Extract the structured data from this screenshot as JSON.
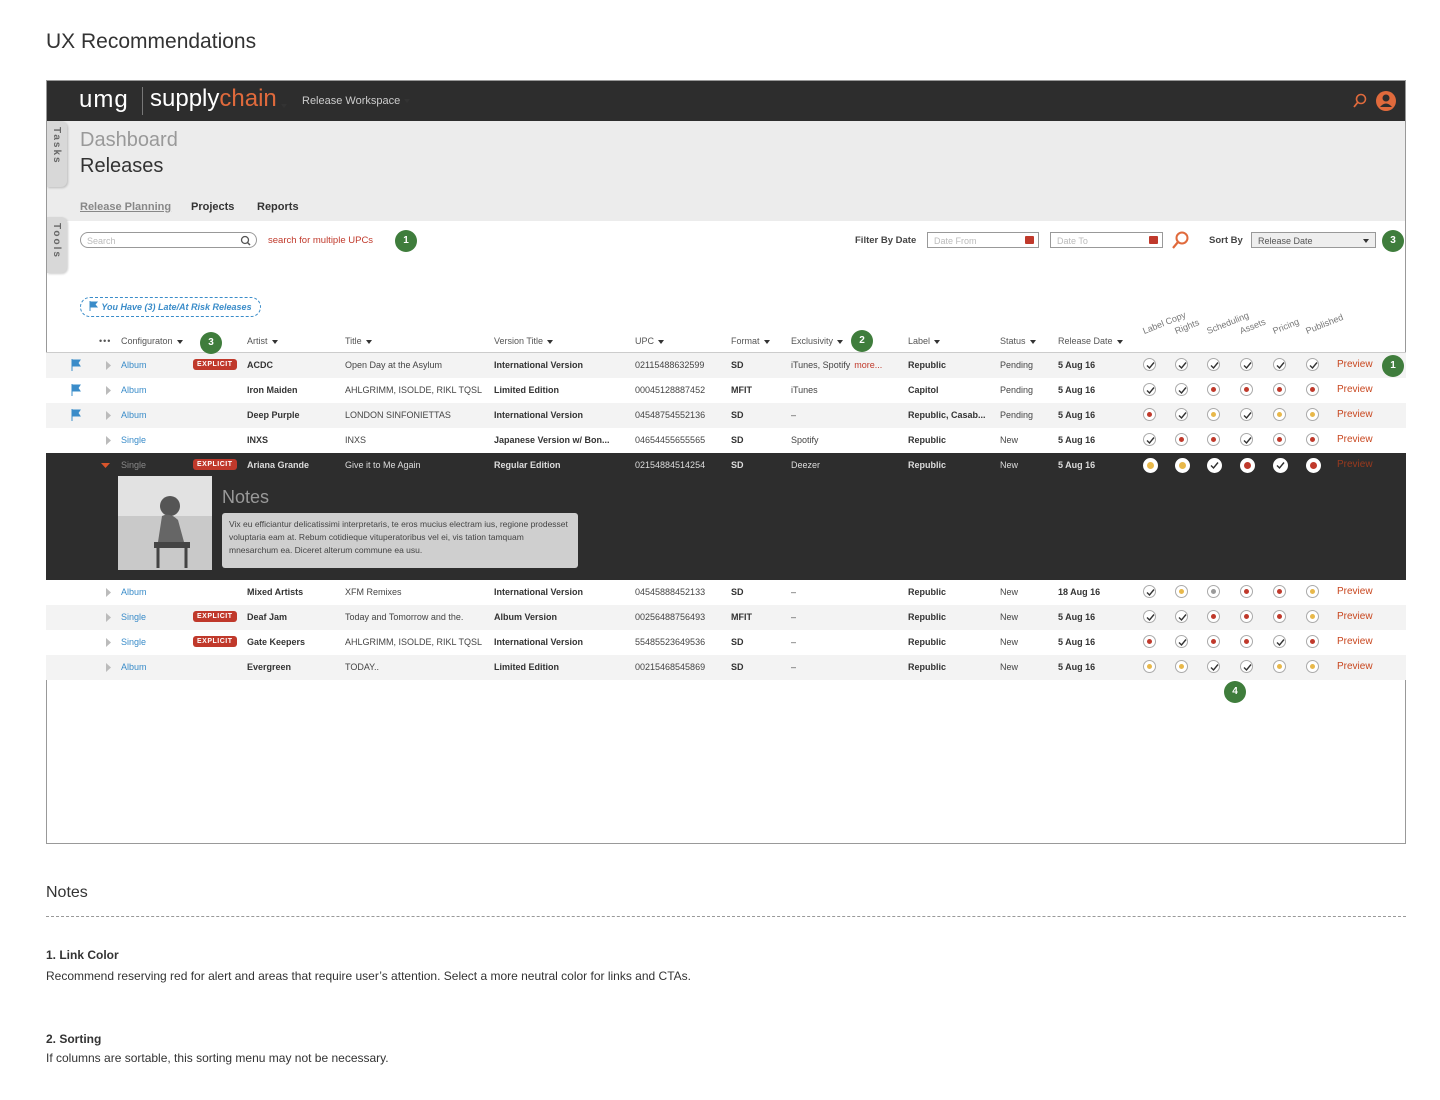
{
  "page_title": "UX Recommendations",
  "app": {
    "brand_umg": "umg",
    "brand_supply": "supply",
    "brand_chain": "chain",
    "workspace": "Release Workspace",
    "side_tabs": [
      "Tasks",
      "Tools"
    ],
    "breadcrumb": "Dashboard",
    "heading": "Releases",
    "tabs": [
      "Release Planning",
      "Projects",
      "Reports"
    ],
    "search_placeholder": "Search",
    "search_link": "search for multiple UPCs",
    "filter_label": "Filter By Date",
    "date_from": "Date From",
    "date_to": "Date To",
    "sort_label": "Sort By",
    "sort_value": "Release Date",
    "alert": "You Have (3) Late/At Risk Releases"
  },
  "markers": [
    "1",
    "3",
    "3",
    "2",
    "1",
    "4"
  ],
  "table": {
    "columns": [
      "Configuraton",
      "Artist",
      "Title",
      "Version Title",
      "UPC",
      "Format",
      "Exclusivity",
      "Label",
      "Status",
      "Release Date"
    ],
    "status_columns": [
      "Label Copy",
      "Rights",
      "Scheduling",
      "Assets",
      "Pricing",
      "Published"
    ],
    "action": "Preview",
    "rows": [
      {
        "flag": true,
        "config": "Album",
        "explicit": "EXPLICIT",
        "artist": "ACDC",
        "title": "Open Day at the Asylum",
        "version": "International Version",
        "upc": "02115488632599",
        "format": "SD",
        "exclusivity": "iTunes, Spotify",
        "more": "more...",
        "label": "Republic",
        "status": "Pending",
        "date": "5 Aug 16",
        "states": [
          "check",
          "check",
          "check",
          "check",
          "check",
          "check"
        ]
      },
      {
        "flag": true,
        "config": "Album",
        "artist": "Iron Maiden",
        "title": "AHLGRIMM, ISOLDE, RIKL TQSL",
        "version": "Limited Edition",
        "upc": "00045128887452",
        "format": "MFIT",
        "exclusivity": "iTunes",
        "label": "Capitol",
        "status": "Pending",
        "date": "5 Aug 16",
        "states": [
          "check",
          "check",
          "red",
          "red",
          "red",
          "red"
        ]
      },
      {
        "flag": true,
        "config": "Album",
        "artist": "Deep Purple",
        "title": "LONDON SINFONIETTAS",
        "version": "International Version",
        "upc": "04548754552136",
        "format": "SD",
        "exclusivity": "–",
        "label": "Republic, Casab...",
        "status": "Pending",
        "date": "5 Aug 16",
        "states": [
          "red",
          "check",
          "yellow",
          "check",
          "yellow",
          "yellow"
        ]
      },
      {
        "config": "Single",
        "artist": "INXS",
        "title": "INXS",
        "version": "Japanese Version w/ Bon...",
        "upc": "04654455655565",
        "format": "SD",
        "exclusivity": "Spotify",
        "label": "Republic",
        "status": "New",
        "date": "5 Aug 16",
        "states": [
          "check",
          "red",
          "red",
          "check",
          "red",
          "red"
        ]
      },
      {
        "expanded": true,
        "config": "Single",
        "explicit": "EXPLICIT",
        "artist": "Ariana Grande",
        "title": "Give it to Me Again",
        "version": "Regular Edition",
        "upc": "02154884514254",
        "format": "SD",
        "exclusivity": "Deezer",
        "label": "Republic",
        "status": "New",
        "date": "5 Aug 16",
        "states": [
          "yellow",
          "yellow",
          "check",
          "red",
          "check",
          "red"
        ],
        "notes_title": "Notes",
        "notes_text": "Vix eu efficiantur delicatissimi interpretaris, te eros mucius electram ius, regione prodesset voluptaria eam at. Rebum cotidieque vituperatoribus vel ei, vis tation tamquam mnesarchum ea. Diceret alterum commune ea usu."
      },
      {
        "config": "Album",
        "artist": "Mixed Artists",
        "title": "XFM Remixes",
        "version": "International Version",
        "upc": "04545888452133",
        "format": "SD",
        "exclusivity": "–",
        "label": "Republic",
        "status": "New",
        "date": "18 Aug 16",
        "states": [
          "check",
          "yellow",
          "gray",
          "red",
          "red",
          "yellow"
        ]
      },
      {
        "config": "Single",
        "explicit": "EXPLICIT",
        "artist": "Deaf Jam",
        "title": "Today and Tomorrow and the.",
        "version": "Album Version",
        "upc": "00256488756493",
        "format": "MFIT",
        "exclusivity": "–",
        "label": "Republic",
        "status": "New",
        "date": "5 Aug 16",
        "states": [
          "check",
          "check",
          "red",
          "red",
          "red",
          "yellow"
        ]
      },
      {
        "config": "Single",
        "explicit": "EXPLICIT",
        "artist": "Gate Keepers",
        "title": "AHLGRIMM, ISOLDE, RIKL TQSL",
        "version": "International Version",
        "upc": "55485523649536",
        "format": "SD",
        "exclusivity": "–",
        "label": "Republic",
        "status": "New",
        "date": "5 Aug 16",
        "states": [
          "red",
          "check",
          "red",
          "red",
          "check",
          "red"
        ]
      },
      {
        "config": "Album",
        "artist": "Evergreen",
        "title": "TODAY..",
        "version": "Limited Edition",
        "upc": "00215468545869",
        "format": "SD",
        "exclusivity": "–",
        "label": "Republic",
        "status": "New",
        "date": "5 Aug 16",
        "states": [
          "yellow",
          "yellow",
          "check",
          "check",
          "yellow",
          "yellow"
        ]
      }
    ]
  },
  "notes": {
    "title": "Notes",
    "items": [
      {
        "title": "1. Link Color",
        "text": "Recommend reserving red for alert and areas that require user’s attention. Select a more neutral color for links and CTAs."
      },
      {
        "title": "2. Sorting",
        "text": "If columns are sortable, this sorting menu may not be necessary."
      }
    ]
  }
}
